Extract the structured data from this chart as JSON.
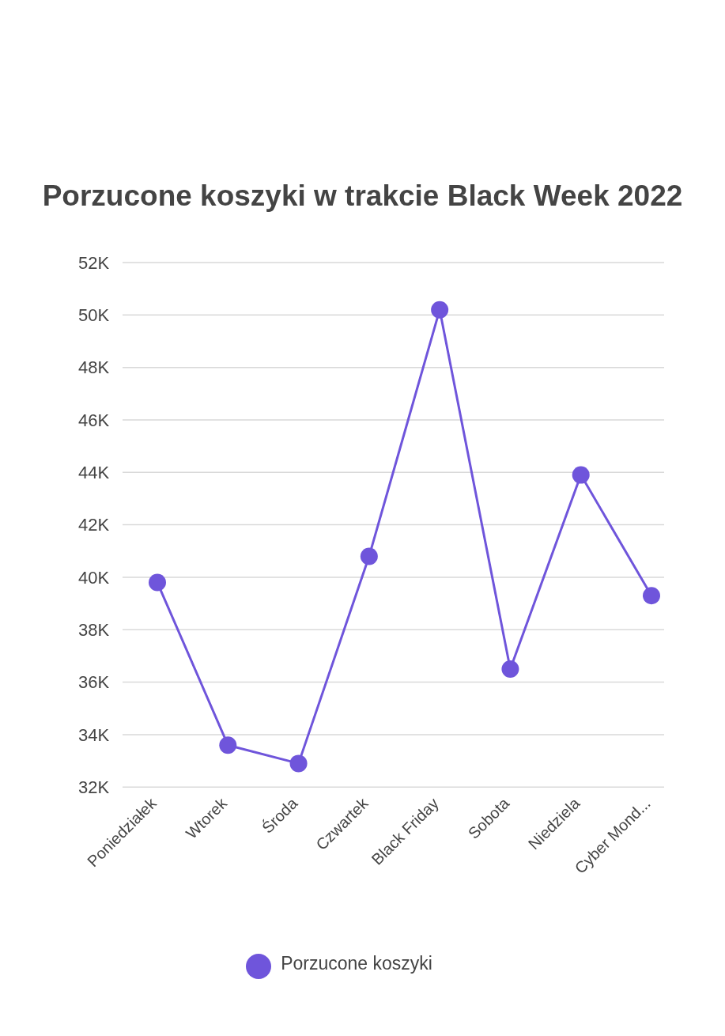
{
  "chart_data": {
    "type": "line",
    "title": "Porzucone koszyki w trakcie Black Week 2022",
    "categories": [
      "Poniedziałek",
      "Wtorek",
      "Środa",
      "Czwartek",
      "Black Friday",
      "Sobota",
      "Niedziela",
      "Cyber Mond..."
    ],
    "series": [
      {
        "name": "Porzucone koszyki",
        "color": "#6f55db",
        "values": [
          39800,
          33600,
          32900,
          40800,
          50200,
          36500,
          43900,
          39300
        ]
      }
    ],
    "ylim": [
      32000,
      52000
    ],
    "yticks": [
      {
        "value": 32000,
        "label": "32K"
      },
      {
        "value": 34000,
        "label": "34K"
      },
      {
        "value": 36000,
        "label": "36K"
      },
      {
        "value": 38000,
        "label": "38K"
      },
      {
        "value": 40000,
        "label": "40K"
      },
      {
        "value": 42000,
        "label": "42K"
      },
      {
        "value": 44000,
        "label": "44K"
      },
      {
        "value": 46000,
        "label": "46K"
      },
      {
        "value": 48000,
        "label": "48K"
      },
      {
        "value": 50000,
        "label": "50K"
      },
      {
        "value": 52000,
        "label": "52K"
      }
    ],
    "grid": "y",
    "legend": "bottom",
    "marker": "circle",
    "line_style": "solid"
  }
}
